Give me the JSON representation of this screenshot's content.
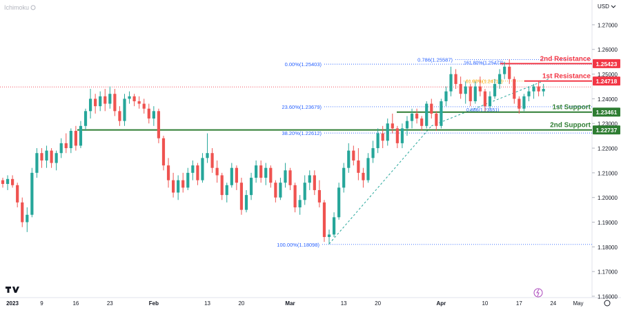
{
  "header": {
    "indicator": "Ichimoku",
    "currency_menu": "USD"
  },
  "chart_data": {
    "type": "candlestick",
    "ylim": [
      1.16,
      1.275
    ],
    "x_range": [
      0,
      115
    ],
    "y_ticks": [
      "1.27000",
      "1.26000",
      "1.25000",
      "1.24000",
      "1.23000",
      "1.22000",
      "1.21000",
      "1.20000",
      "1.19000",
      "1.18000",
      "1.17000",
      "1.16000"
    ],
    "x_ticks": [
      {
        "label": "2023",
        "x": 0
      },
      {
        "label": "9",
        "x": 8
      },
      {
        "label": "16",
        "x": 15
      },
      {
        "label": "23",
        "x": 22
      },
      {
        "label": "Feb",
        "x": 31
      },
      {
        "label": "13",
        "x": 42
      },
      {
        "label": "20",
        "x": 49
      },
      {
        "label": "Mar",
        "x": 59
      },
      {
        "label": "13",
        "x": 70
      },
      {
        "label": "20",
        "x": 77
      },
      {
        "label": "Apr",
        "x": 90
      },
      {
        "label": "10",
        "x": 99
      },
      {
        "label": "17",
        "x": 106
      },
      {
        "label": "24",
        "x": 113
      },
      {
        "label": "May",
        "x": 120
      }
    ],
    "candles": [
      [
        1.207,
        1.208,
        1.204,
        1.2055
      ],
      [
        1.2055,
        1.209,
        1.203,
        1.2075
      ],
      [
        1.2075,
        1.209,
        1.204,
        1.205
      ],
      [
        1.205,
        1.206,
        1.196,
        1.198
      ],
      [
        1.198,
        1.2,
        1.188,
        1.19
      ],
      [
        1.19,
        1.196,
        1.186,
        1.193
      ],
      [
        1.193,
        1.212,
        1.192,
        1.21
      ],
      [
        1.21,
        1.22,
        1.208,
        1.218
      ],
      [
        1.218,
        1.22,
        1.212,
        1.215
      ],
      [
        1.215,
        1.221,
        1.212,
        1.219
      ],
      [
        1.219,
        1.22,
        1.212,
        1.214
      ],
      [
        1.214,
        1.219,
        1.211,
        1.218
      ],
      [
        1.218,
        1.224,
        1.216,
        1.222
      ],
      [
        1.222,
        1.226,
        1.218,
        1.22
      ],
      [
        1.22,
        1.228,
        1.218,
        1.227
      ],
      [
        1.227,
        1.229,
        1.219,
        1.221
      ],
      [
        1.221,
        1.231,
        1.22,
        1.229
      ],
      [
        1.229,
        1.236,
        1.227,
        1.235
      ],
      [
        1.235,
        1.244,
        1.232,
        1.24
      ],
      [
        1.24,
        1.242,
        1.234,
        1.237
      ],
      [
        1.237,
        1.243,
        1.235,
        1.241
      ],
      [
        1.241,
        1.244,
        1.235,
        1.238
      ],
      [
        1.238,
        1.245,
        1.236,
        1.242
      ],
      [
        1.242,
        1.244,
        1.233,
        1.235
      ],
      [
        1.235,
        1.237,
        1.229,
        1.231
      ],
      [
        1.231,
        1.242,
        1.229,
        1.24
      ],
      [
        1.24,
        1.243,
        1.238,
        1.241
      ],
      [
        1.241,
        1.242,
        1.237,
        1.239
      ],
      [
        1.239,
        1.241,
        1.236,
        1.238
      ],
      [
        1.238,
        1.24,
        1.234,
        1.236
      ],
      [
        1.236,
        1.238,
        1.23,
        1.232
      ],
      [
        1.232,
        1.237,
        1.229,
        1.235
      ],
      [
        1.235,
        1.236,
        1.222,
        1.224
      ],
      [
        1.224,
        1.225,
        1.211,
        1.213
      ],
      [
        1.213,
        1.216,
        1.204,
        1.207
      ],
      [
        1.207,
        1.21,
        1.2,
        1.202
      ],
      [
        1.202,
        1.209,
        1.199,
        1.207
      ],
      [
        1.207,
        1.21,
        1.202,
        1.204
      ],
      [
        1.204,
        1.212,
        1.203,
        1.21
      ],
      [
        1.21,
        1.215,
        1.207,
        1.213
      ],
      [
        1.213,
        1.214,
        1.205,
        1.207
      ],
      [
        1.207,
        1.218,
        1.206,
        1.216
      ],
      [
        1.216,
        1.226,
        1.214,
        1.218
      ],
      [
        1.218,
        1.22,
        1.21,
        1.212
      ],
      [
        1.212,
        1.215,
        1.206,
        1.209
      ],
      [
        1.209,
        1.21,
        1.199,
        1.201
      ],
      [
        1.201,
        1.206,
        1.198,
        1.205
      ],
      [
        1.205,
        1.214,
        1.204,
        1.212
      ],
      [
        1.212,
        1.213,
        1.203,
        1.206
      ],
      [
        1.206,
        1.208,
        1.193,
        1.195
      ],
      [
        1.195,
        1.203,
        1.194,
        1.201
      ],
      [
        1.201,
        1.21,
        1.199,
        1.208
      ],
      [
        1.208,
        1.215,
        1.206,
        1.213
      ],
      [
        1.213,
        1.215,
        1.206,
        1.208
      ],
      [
        1.208,
        1.214,
        1.205,
        1.212
      ],
      [
        1.212,
        1.213,
        1.204,
        1.206
      ],
      [
        1.206,
        1.207,
        1.198,
        1.2
      ],
      [
        1.2,
        1.208,
        1.199,
        1.206
      ],
      [
        1.206,
        1.214,
        1.204,
        1.211
      ],
      [
        1.211,
        1.212,
        1.203,
        1.205
      ],
      [
        1.205,
        1.206,
        1.194,
        1.196
      ],
      [
        1.196,
        1.201,
        1.193,
        1.199
      ],
      [
        1.199,
        1.209,
        1.197,
        1.206
      ],
      [
        1.206,
        1.211,
        1.203,
        1.209
      ],
      [
        1.209,
        1.211,
        1.201,
        1.203
      ],
      [
        1.203,
        1.207,
        1.196,
        1.198
      ],
      [
        1.198,
        1.199,
        1.182,
        1.184
      ],
      [
        1.184,
        1.187,
        1.181,
        1.185
      ],
      [
        1.185,
        1.194,
        1.184,
        1.192
      ],
      [
        1.192,
        1.206,
        1.191,
        1.204
      ],
      [
        1.204,
        1.214,
        1.202,
        1.212
      ],
      [
        1.212,
        1.222,
        1.21,
        1.219
      ],
      [
        1.219,
        1.221,
        1.213,
        1.215
      ],
      [
        1.215,
        1.22,
        1.207,
        1.21
      ],
      [
        1.21,
        1.212,
        1.204,
        1.207
      ],
      [
        1.207,
        1.218,
        1.206,
        1.216
      ],
      [
        1.216,
        1.223,
        1.214,
        1.22
      ],
      [
        1.22,
        1.228,
        1.218,
        1.226
      ],
      [
        1.226,
        1.229,
        1.22,
        1.223
      ],
      [
        1.223,
        1.232,
        1.221,
        1.23
      ],
      [
        1.23,
        1.234,
        1.226,
        1.228
      ],
      [
        1.228,
        1.229,
        1.22,
        1.222
      ],
      [
        1.222,
        1.23,
        1.22,
        1.228
      ],
      [
        1.228,
        1.233,
        1.225,
        1.231
      ],
      [
        1.231,
        1.236,
        1.228,
        1.234
      ],
      [
        1.234,
        1.236,
        1.23,
        1.232
      ],
      [
        1.232,
        1.233,
        1.227,
        1.229
      ],
      [
        1.229,
        1.239,
        1.228,
        1.238
      ],
      [
        1.238,
        1.24,
        1.232,
        1.234
      ],
      [
        1.234,
        1.235,
        1.227,
        1.229
      ],
      [
        1.229,
        1.24,
        1.228,
        1.239
      ],
      [
        1.239,
        1.245,
        1.237,
        1.243
      ],
      [
        1.243,
        1.253,
        1.241,
        1.25
      ],
      [
        1.25,
        1.252,
        1.244,
        1.246
      ],
      [
        1.246,
        1.249,
        1.24,
        1.242
      ],
      [
        1.242,
        1.247,
        1.238,
        1.245
      ],
      [
        1.245,
        1.246,
        1.237,
        1.239
      ],
      [
        1.239,
        1.247,
        1.238,
        1.245
      ],
      [
        1.245,
        1.249,
        1.241,
        1.243
      ],
      [
        1.243,
        1.244,
        1.235,
        1.237
      ],
      [
        1.237,
        1.243,
        1.236,
        1.241
      ],
      [
        1.241,
        1.248,
        1.24,
        1.246
      ],
      [
        1.246,
        1.252,
        1.244,
        1.25
      ],
      [
        1.25,
        1.255,
        1.248,
        1.253
      ],
      [
        1.253,
        1.256,
        1.246,
        1.248
      ],
      [
        1.248,
        1.249,
        1.238,
        1.24
      ],
      [
        1.24,
        1.241,
        1.234,
        1.236
      ],
      [
        1.236,
        1.242,
        1.235,
        1.241
      ],
      [
        1.241,
        1.245,
        1.239,
        1.243
      ],
      [
        1.243,
        1.246,
        1.24,
        1.245
      ],
      [
        1.245,
        1.247,
        1.241,
        1.243
      ],
      [
        1.243,
        1.246,
        1.241,
        1.244
      ]
    ],
    "fib_levels": [
      {
        "label": "0.00%(1.25403)",
        "price": 1.25403
      },
      {
        "label": "23.60%(1.23679)",
        "price": 1.23679
      },
      {
        "label": "38.20%(1.22612)",
        "price": 1.22612
      },
      {
        "label": "100.00%(1.18098)",
        "price": 1.18098
      }
    ],
    "fib_levels_2": [
      {
        "label": "0.786(1.25587)",
        "price": 1.25587
      },
      {
        "label": "161.80%(1.25473)",
        "price": 1.25473
      },
      {
        "label": "61.80%(1.24717)",
        "price": 1.24717
      },
      {
        "label": "0.886(1.23651)",
        "price": 1.23651
      }
    ],
    "levels": [
      {
        "name": "2nd Resistance",
        "price": 1.25423,
        "value": "1.25423",
        "color": "#f23645"
      },
      {
        "name": "1st Resistance",
        "price": 1.24718,
        "value": "1.24718",
        "color": "#f23645"
      },
      {
        "name": "1st Support",
        "price": 1.23461,
        "value": "1.23461",
        "color": "#2e7d32"
      },
      {
        "name": "2nd Support",
        "price": 1.22737,
        "value": "1.22737",
        "color": "#2e7d32"
      }
    ],
    "current_price": 1.2448,
    "colors": {
      "up": "#26a69a",
      "down": "#ef5350",
      "fib": "#2962ff",
      "fib_orange": "#f7a600"
    }
  }
}
